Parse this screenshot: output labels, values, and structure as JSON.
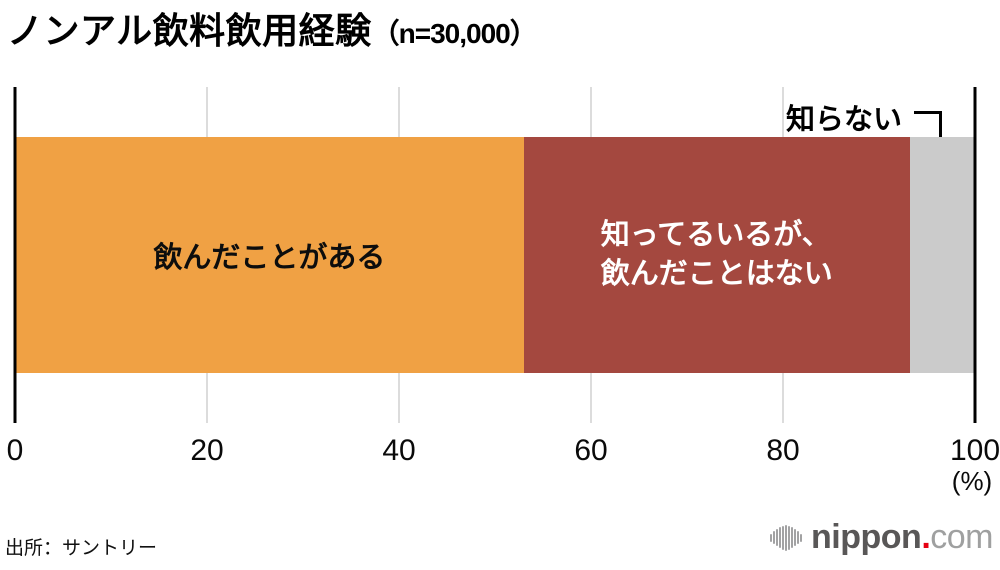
{
  "title": {
    "main": "ノンアル飲料飲用経験",
    "sample": "（n=30,000）"
  },
  "chart_data": {
    "type": "bar",
    "orientation": "horizontal",
    "stacked": true,
    "title": "ノンアル飲料飲用経験（n=30,000）",
    "sample_size": "n=30,000",
    "unit": "%",
    "grid": true,
    "segments": [
      {
        "label": "飲んだことがある",
        "value": 53.0,
        "color": "#f0a144",
        "label_color": "#0d0d0d"
      },
      {
        "label": "知ってるいるが、飲んだことはない",
        "label_lines": [
          "知ってるいるが、",
          "飲んだことはない"
        ],
        "value": 40.2,
        "color": "#a4483f",
        "label_color": "#ffffff"
      },
      {
        "label": "知らない",
        "value": 6.8,
        "color": "#cbcbcb",
        "label_color": "#0d0d0d",
        "label_position": "outside-callout"
      }
    ],
    "axis": {
      "min": 0,
      "max": 100,
      "ticks": [
        0,
        20,
        40,
        60,
        80,
        100
      ],
      "unit_label": "(%)"
    }
  },
  "footer": {
    "source": "出所：サントリー",
    "logo": {
      "name": "nippon",
      "dot": ".",
      "tld": "com",
      "mark": "soundwave-bars",
      "dot_color": "#e60012"
    }
  }
}
